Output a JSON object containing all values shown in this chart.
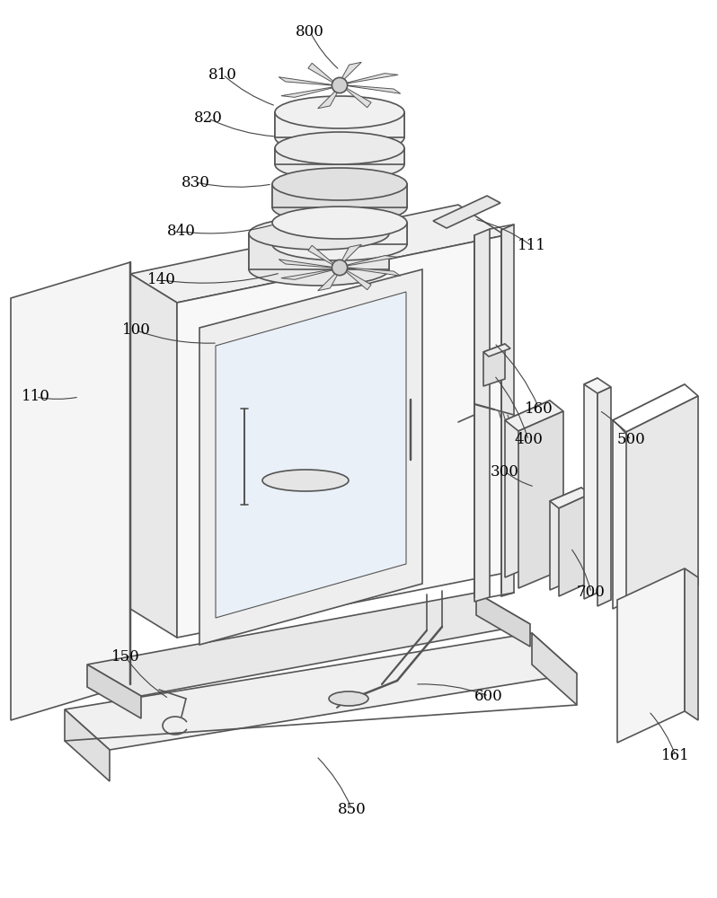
{
  "bg_color": "#ffffff",
  "line_color": "#555555",
  "line_width": 1.2,
  "figsize": [
    7.98,
    10.0
  ],
  "dpi": 100
}
